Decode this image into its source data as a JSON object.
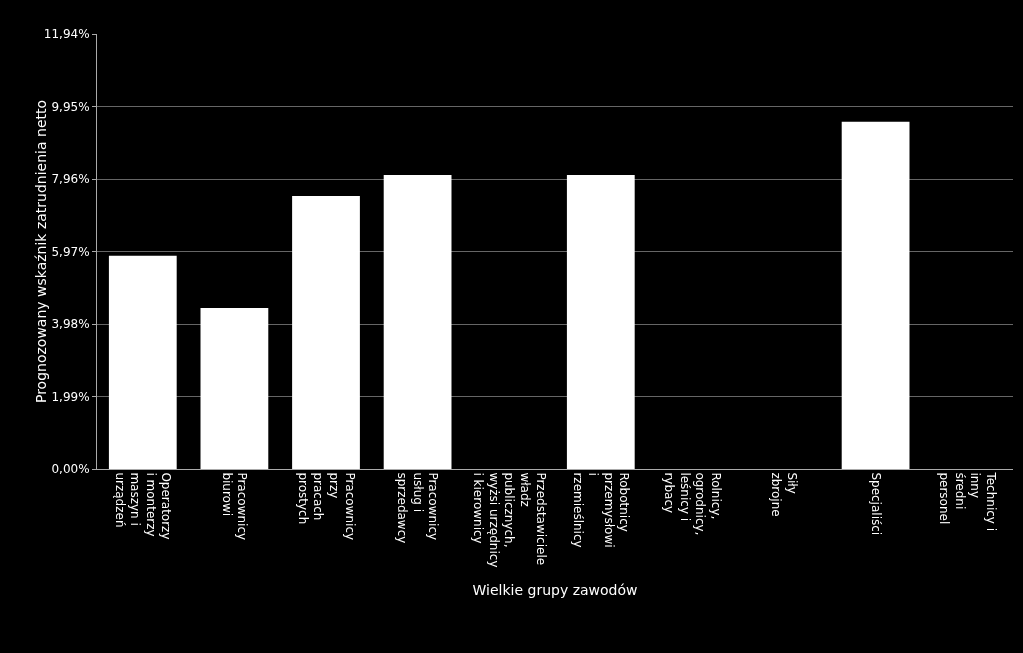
{
  "chart_data": {
    "type": "bar",
    "xlabel": "Wielkie grupy zawodów",
    "ylabel": "Prognozowany wskaźnik zatrudnienia netto",
    "categories": [
      "Operatorzy\ni monterzy\nmaszyn i\nurządzeń",
      "Pracownicy\nbiurowi",
      "Pracownicy\nprzy\npracach\nprostych",
      "Pracownicy\nusług i\nsprzedawcy",
      "Przedstawiciele\nwładz\npublicznych,\nwyżsi urzędnicy\ni kierownicy",
      "Robotnicy\nprzemysłowi\ni\nrzemieślnicy",
      "Rolnicy,\nogrodnicy,\nleśnicy i\nrybacy",
      "Siły\nzbrojne",
      "Specjaliści",
      "Technicy i\ninny\nśredni\npersonel"
    ],
    "values": [
      5.85,
      4.42,
      7.49,
      8.07,
      0,
      8.07,
      0,
      0,
      9.53,
      0
    ],
    "color": "#ffffff",
    "ylim": [
      0,
      11.94
    ],
    "yticks": [
      {
        "value": 0,
        "label": "0,00%"
      },
      {
        "value": 1.99,
        "label": "1,99%"
      },
      {
        "value": 3.98,
        "label": "3,98%"
      },
      {
        "value": 5.97,
        "label": "5,97%"
      },
      {
        "value": 7.96,
        "label": "7,96%"
      },
      {
        "value": 9.95,
        "label": "9,95%"
      },
      {
        "value": 11.94,
        "label": "11,94%"
      }
    ],
    "grid": "y",
    "legend": false
  }
}
